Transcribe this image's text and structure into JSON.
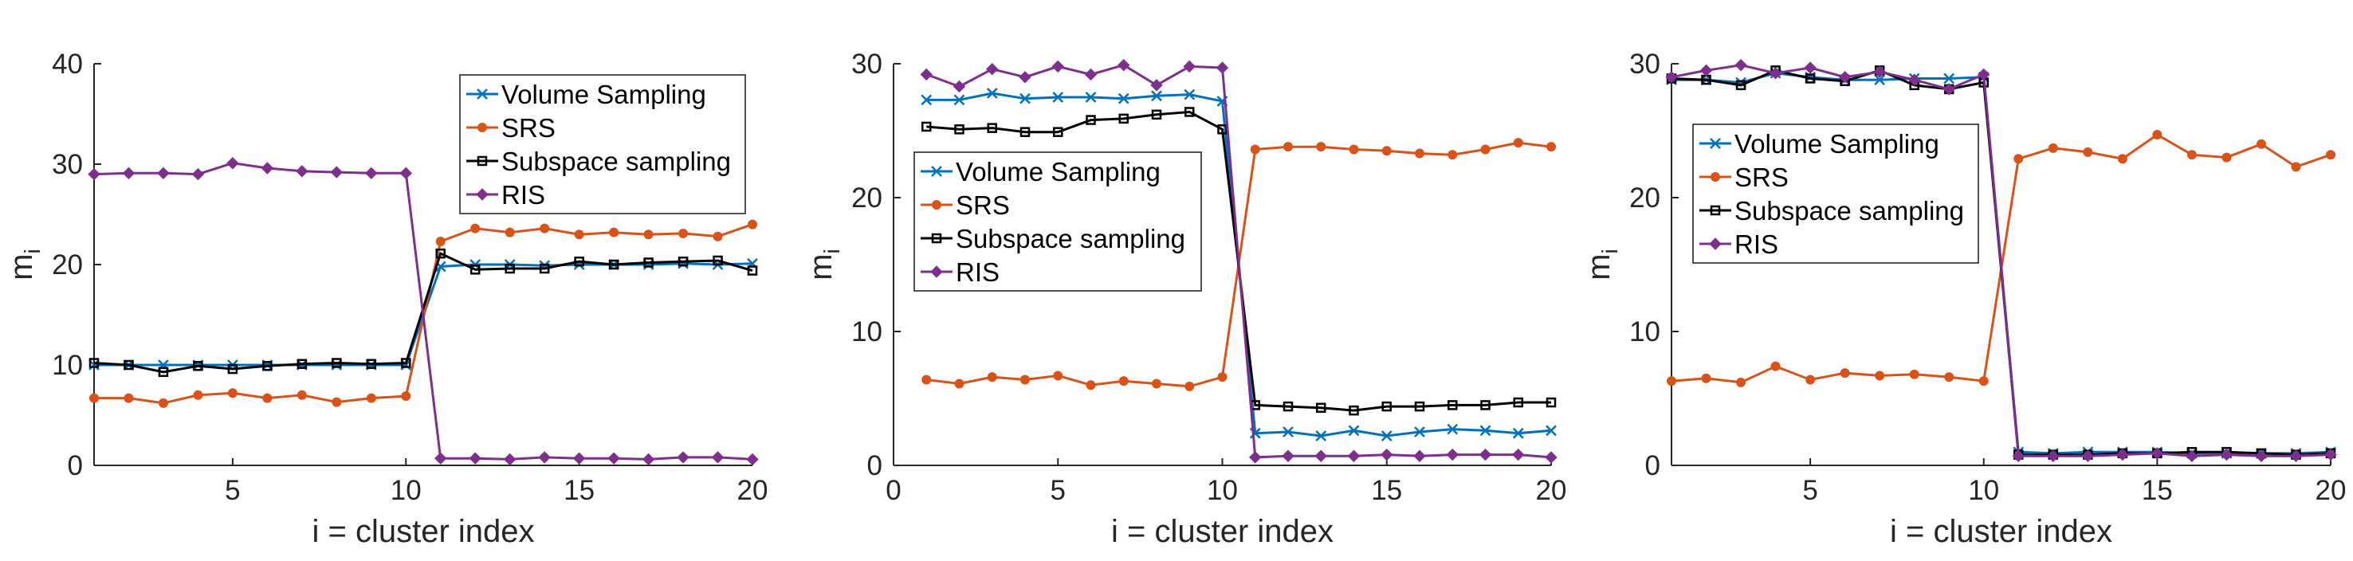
{
  "colors": {
    "Volume Sampling": "#0072BD",
    "SRS": "#D95319",
    "Subspace sampling": "#000000",
    "RIS": "#7E2F8E",
    "axis": "#262626"
  },
  "markers": {
    "Volume Sampling": "x",
    "SRS": "circle",
    "Subspace sampling": "square",
    "RIS": "diamond"
  },
  "chart_data": [
    {
      "type": "line",
      "xlabel": "i = cluster index",
      "ylabel": "m",
      "ylabel_sub": "i",
      "xlim": [
        1,
        20
      ],
      "ylim": [
        0,
        40
      ],
      "xticks": [
        5,
        10,
        15,
        20
      ],
      "yticks": [
        0,
        10,
        20,
        30,
        40
      ],
      "legend_position": "top-right",
      "x": [
        1,
        2,
        3,
        4,
        5,
        6,
        7,
        8,
        9,
        10,
        11,
        12,
        13,
        14,
        15,
        16,
        17,
        18,
        19,
        20
      ],
      "series": [
        {
          "name": "Volume Sampling",
          "values": [
            10.0,
            10.0,
            10.0,
            10.0,
            10.0,
            10.0,
            10.0,
            10.0,
            10.0,
            10.0,
            19.8,
            20.0,
            20.0,
            19.9,
            20.0,
            20.0,
            20.0,
            20.1,
            20.0,
            20.1
          ]
        },
        {
          "name": "SRS",
          "values": [
            6.7,
            6.7,
            6.2,
            7.0,
            7.2,
            6.7,
            7.0,
            6.3,
            6.7,
            6.9,
            22.3,
            23.6,
            23.2,
            23.6,
            23.0,
            23.2,
            23.0,
            23.1,
            22.8,
            24.0
          ]
        },
        {
          "name": "Subspace sampling",
          "values": [
            10.2,
            10.0,
            9.3,
            9.9,
            9.6,
            9.9,
            10.1,
            10.2,
            10.1,
            10.2,
            21.1,
            19.5,
            19.6,
            19.6,
            20.3,
            20.0,
            20.2,
            20.3,
            20.4,
            19.4
          ]
        },
        {
          "name": "RIS",
          "values": [
            29.0,
            29.1,
            29.1,
            29.0,
            30.1,
            29.6,
            29.3,
            29.2,
            29.1,
            29.1,
            0.7,
            0.7,
            0.6,
            0.8,
            0.7,
            0.7,
            0.6,
            0.8,
            0.8,
            0.6
          ]
        }
      ]
    },
    {
      "type": "line",
      "xlabel": "i = cluster index",
      "ylabel": "m",
      "ylabel_sub": "i",
      "xlim": [
        0,
        20
      ],
      "ylim": [
        0,
        30
      ],
      "xticks": [
        0,
        5,
        10,
        15,
        20
      ],
      "yticks": [
        0,
        10,
        20,
        30
      ],
      "legend_position": "left-middle",
      "x": [
        1,
        2,
        3,
        4,
        5,
        6,
        7,
        8,
        9,
        10,
        11,
        12,
        13,
        14,
        15,
        16,
        17,
        18,
        19,
        20
      ],
      "series": [
        {
          "name": "Volume Sampling",
          "values": [
            27.3,
            27.3,
            27.8,
            27.4,
            27.5,
            27.5,
            27.4,
            27.6,
            27.7,
            27.2,
            2.4,
            2.5,
            2.2,
            2.6,
            2.2,
            2.5,
            2.7,
            2.6,
            2.4,
            2.6
          ]
        },
        {
          "name": "SRS",
          "values": [
            6.4,
            6.1,
            6.6,
            6.4,
            6.7,
            6.0,
            6.3,
            6.1,
            5.9,
            6.6,
            23.6,
            23.8,
            23.8,
            23.6,
            23.5,
            23.3,
            23.2,
            23.6,
            24.1,
            23.8
          ]
        },
        {
          "name": "Subspace sampling",
          "values": [
            25.3,
            25.1,
            25.2,
            24.9,
            24.9,
            25.8,
            25.9,
            26.2,
            26.4,
            25.1,
            4.5,
            4.4,
            4.3,
            4.1,
            4.4,
            4.4,
            4.5,
            4.5,
            4.7,
            4.7
          ]
        },
        {
          "name": "RIS",
          "values": [
            29.2,
            28.3,
            29.6,
            29.0,
            29.8,
            29.2,
            29.9,
            28.4,
            29.8,
            29.7,
            0.6,
            0.7,
            0.7,
            0.7,
            0.8,
            0.7,
            0.8,
            0.8,
            0.8,
            0.6
          ]
        }
      ]
    },
    {
      "type": "line",
      "xlabel": "i = cluster index",
      "ylabel": "m",
      "ylabel_sub": "i",
      "xlim": [
        1,
        20
      ],
      "ylim": [
        0,
        30
      ],
      "xticks": [
        5,
        10,
        15,
        20
      ],
      "yticks": [
        0,
        10,
        20,
        30
      ],
      "legend_position": "left-middle",
      "x": [
        1,
        2,
        3,
        4,
        5,
        6,
        7,
        8,
        9,
        10,
        11,
        12,
        13,
        14,
        15,
        16,
        17,
        18,
        19,
        20
      ],
      "series": [
        {
          "name": "Volume Sampling",
          "values": [
            28.8,
            28.8,
            28.6,
            29.3,
            29.0,
            28.8,
            28.8,
            28.9,
            28.9,
            29.0,
            1.0,
            0.9,
            1.0,
            1.0,
            1.0,
            0.9,
            0.9,
            0.9,
            0.9,
            1.0
          ]
        },
        {
          "name": "SRS",
          "values": [
            6.3,
            6.5,
            6.2,
            7.4,
            6.4,
            6.9,
            6.7,
            6.8,
            6.6,
            6.3,
            22.9,
            23.7,
            23.4,
            22.9,
            24.7,
            23.2,
            23.0,
            24.0,
            22.3,
            23.2
          ]
        },
        {
          "name": "Subspace sampling",
          "values": [
            28.9,
            28.8,
            28.4,
            29.5,
            28.9,
            28.7,
            29.5,
            28.4,
            28.1,
            28.6,
            0.8,
            0.8,
            0.8,
            0.9,
            0.9,
            1.0,
            1.0,
            0.9,
            0.8,
            0.9
          ]
        },
        {
          "name": "RIS",
          "values": [
            29.0,
            29.5,
            29.9,
            29.3,
            29.7,
            29.0,
            29.4,
            28.8,
            28.1,
            29.2,
            0.7,
            0.7,
            0.7,
            0.8,
            0.9,
            0.7,
            0.8,
            0.7,
            0.7,
            0.8
          ]
        }
      ]
    }
  ]
}
